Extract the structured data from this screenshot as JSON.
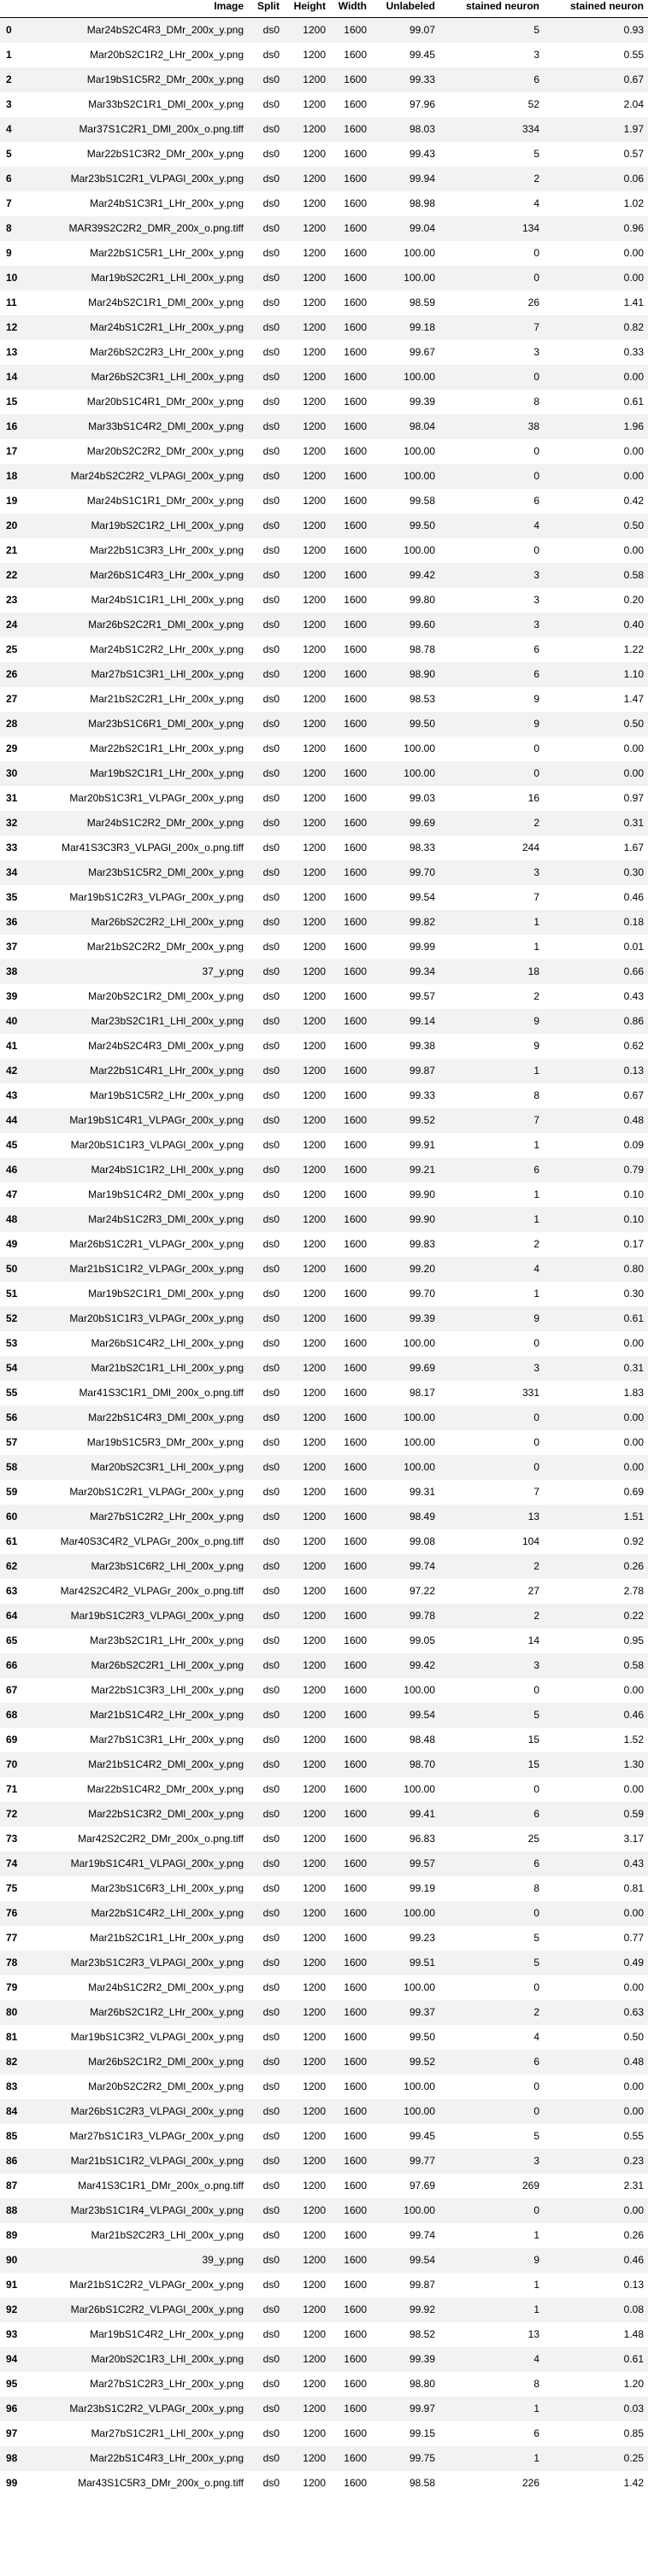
{
  "table": {
    "columns": [
      "",
      "Image",
      "Split",
      "Height",
      "Width",
      "Unlabeled",
      "stained neuron",
      "stained neuron"
    ],
    "rows": [
      [
        "0",
        "Mar24bS2C4R3_DMr_200x_y.png",
        "ds0",
        "1200",
        "1600",
        "99.07",
        "5",
        "0.93"
      ],
      [
        "1",
        "Mar20bS2C1R2_LHr_200x_y.png",
        "ds0",
        "1200",
        "1600",
        "99.45",
        "3",
        "0.55"
      ],
      [
        "2",
        "Mar19bS1C5R2_DMr_200x_y.png",
        "ds0",
        "1200",
        "1600",
        "99.33",
        "6",
        "0.67"
      ],
      [
        "3",
        "Mar33bS2C1R1_DMl_200x_y.png",
        "ds0",
        "1200",
        "1600",
        "97.96",
        "52",
        "2.04"
      ],
      [
        "4",
        "Mar37S1C2R1_DMl_200x_o.png.tiff",
        "ds0",
        "1200",
        "1600",
        "98.03",
        "334",
        "1.97"
      ],
      [
        "5",
        "Mar22bS1C3R2_DMr_200x_y.png",
        "ds0",
        "1200",
        "1600",
        "99.43",
        "5",
        "0.57"
      ],
      [
        "6",
        "Mar23bS1C2R1_VLPAGl_200x_y.png",
        "ds0",
        "1200",
        "1600",
        "99.94",
        "2",
        "0.06"
      ],
      [
        "7",
        "Mar24bS1C3R1_LHr_200x_y.png",
        "ds0",
        "1200",
        "1600",
        "98.98",
        "4",
        "1.02"
      ],
      [
        "8",
        "MAR39S2C2R2_DMR_200x_o.png.tiff",
        "ds0",
        "1200",
        "1600",
        "99.04",
        "134",
        "0.96"
      ],
      [
        "9",
        "Mar22bS1C5R1_LHr_200x_y.png",
        "ds0",
        "1200",
        "1600",
        "100.00",
        "0",
        "0.00"
      ],
      [
        "10",
        "Mar19bS2C2R1_LHl_200x_y.png",
        "ds0",
        "1200",
        "1600",
        "100.00",
        "0",
        "0.00"
      ],
      [
        "11",
        "Mar24bS2C1R1_DMl_200x_y.png",
        "ds0",
        "1200",
        "1600",
        "98.59",
        "26",
        "1.41"
      ],
      [
        "12",
        "Mar24bS1C2R1_LHr_200x_y.png",
        "ds0",
        "1200",
        "1600",
        "99.18",
        "7",
        "0.82"
      ],
      [
        "13",
        "Mar26bS2C2R3_LHr_200x_y.png",
        "ds0",
        "1200",
        "1600",
        "99.67",
        "3",
        "0.33"
      ],
      [
        "14",
        "Mar26bS2C3R1_LHl_200x_y.png",
        "ds0",
        "1200",
        "1600",
        "100.00",
        "0",
        "0.00"
      ],
      [
        "15",
        "Mar20bS1C4R1_DMr_200x_y.png",
        "ds0",
        "1200",
        "1600",
        "99.39",
        "8",
        "0.61"
      ],
      [
        "16",
        "Mar33bS1C4R2_DMl_200x_y.png",
        "ds0",
        "1200",
        "1600",
        "98.04",
        "38",
        "1.96"
      ],
      [
        "17",
        "Mar20bS2C2R2_DMr_200x_y.png",
        "ds0",
        "1200",
        "1600",
        "100.00",
        "0",
        "0.00"
      ],
      [
        "18",
        "Mar24bS2C2R2_VLPAGl_200x_y.png",
        "ds0",
        "1200",
        "1600",
        "100.00",
        "0",
        "0.00"
      ],
      [
        "19",
        "Mar24bS1C1R1_DMr_200x_y.png",
        "ds0",
        "1200",
        "1600",
        "99.58",
        "6",
        "0.42"
      ],
      [
        "20",
        "Mar19bS2C1R2_LHl_200x_y.png",
        "ds0",
        "1200",
        "1600",
        "99.50",
        "4",
        "0.50"
      ],
      [
        "21",
        "Mar22bS1C3R3_LHr_200x_y.png",
        "ds0",
        "1200",
        "1600",
        "100.00",
        "0",
        "0.00"
      ],
      [
        "22",
        "Mar26bS1C4R3_LHr_200x_y.png",
        "ds0",
        "1200",
        "1600",
        "99.42",
        "3",
        "0.58"
      ],
      [
        "23",
        "Mar24bS1C1R1_LHl_200x_y.png",
        "ds0",
        "1200",
        "1600",
        "99.80",
        "3",
        "0.20"
      ],
      [
        "24",
        "Mar26bS2C2R1_DMl_200x_y.png",
        "ds0",
        "1200",
        "1600",
        "99.60",
        "3",
        "0.40"
      ],
      [
        "25",
        "Mar24bS1C2R2_LHr_200x_y.png",
        "ds0",
        "1200",
        "1600",
        "98.78",
        "6",
        "1.22"
      ],
      [
        "26",
        "Mar27bS1C3R1_LHl_200x_y.png",
        "ds0",
        "1200",
        "1600",
        "98.90",
        "6",
        "1.10"
      ],
      [
        "27",
        "Mar21bS2C2R1_LHr_200x_y.png",
        "ds0",
        "1200",
        "1600",
        "98.53",
        "9",
        "1.47"
      ],
      [
        "28",
        "Mar23bS1C6R1_DMl_200x_y.png",
        "ds0",
        "1200",
        "1600",
        "99.50",
        "9",
        "0.50"
      ],
      [
        "29",
        "Mar22bS2C1R1_LHr_200x_y.png",
        "ds0",
        "1200",
        "1600",
        "100.00",
        "0",
        "0.00"
      ],
      [
        "30",
        "Mar19bS2C1R1_LHr_200x_y.png",
        "ds0",
        "1200",
        "1600",
        "100.00",
        "0",
        "0.00"
      ],
      [
        "31",
        "Mar20bS1C3R1_VLPAGr_200x_y.png",
        "ds0",
        "1200",
        "1600",
        "99.03",
        "16",
        "0.97"
      ],
      [
        "32",
        "Mar24bS1C2R2_DMr_200x_y.png",
        "ds0",
        "1200",
        "1600",
        "99.69",
        "2",
        "0.31"
      ],
      [
        "33",
        "Mar41S3C3R3_VLPAGl_200x_o.png.tiff",
        "ds0",
        "1200",
        "1600",
        "98.33",
        "244",
        "1.67"
      ],
      [
        "34",
        "Mar23bS1C5R2_DMl_200x_y.png",
        "ds0",
        "1200",
        "1600",
        "99.70",
        "3",
        "0.30"
      ],
      [
        "35",
        "Mar19bS1C2R3_VLPAGr_200x_y.png",
        "ds0",
        "1200",
        "1600",
        "99.54",
        "7",
        "0.46"
      ],
      [
        "36",
        "Mar26bS2C2R2_LHl_200x_y.png",
        "ds0",
        "1200",
        "1600",
        "99.82",
        "1",
        "0.18"
      ],
      [
        "37",
        "Mar21bS2C2R2_DMr_200x_y.png",
        "ds0",
        "1200",
        "1600",
        "99.99",
        "1",
        "0.01"
      ],
      [
        "38",
        "37_y.png",
        "ds0",
        "1200",
        "1600",
        "99.34",
        "18",
        "0.66"
      ],
      [
        "39",
        "Mar20bS2C1R2_DMl_200x_y.png",
        "ds0",
        "1200",
        "1600",
        "99.57",
        "2",
        "0.43"
      ],
      [
        "40",
        "Mar23bS2C1R1_LHl_200x_y.png",
        "ds0",
        "1200",
        "1600",
        "99.14",
        "9",
        "0.86"
      ],
      [
        "41",
        "Mar24bS2C4R3_DMl_200x_y.png",
        "ds0",
        "1200",
        "1600",
        "99.38",
        "9",
        "0.62"
      ],
      [
        "42",
        "Mar22bS1C4R1_LHr_200x_y.png",
        "ds0",
        "1200",
        "1600",
        "99.87",
        "1",
        "0.13"
      ],
      [
        "43",
        "Mar19bS1C5R2_LHr_200x_y.png",
        "ds0",
        "1200",
        "1600",
        "99.33",
        "8",
        "0.67"
      ],
      [
        "44",
        "Mar19bS1C4R1_VLPAGr_200x_y.png",
        "ds0",
        "1200",
        "1600",
        "99.52",
        "7",
        "0.48"
      ],
      [
        "45",
        "Mar20bS1C1R3_VLPAGl_200x_y.png",
        "ds0",
        "1200",
        "1600",
        "99.91",
        "1",
        "0.09"
      ],
      [
        "46",
        "Mar24bS1C1R2_LHl_200x_y.png",
        "ds0",
        "1200",
        "1600",
        "99.21",
        "6",
        "0.79"
      ],
      [
        "47",
        "Mar19bS1C4R2_DMl_200x_y.png",
        "ds0",
        "1200",
        "1600",
        "99.90",
        "1",
        "0.10"
      ],
      [
        "48",
        "Mar24bS1C2R3_DMl_200x_y.png",
        "ds0",
        "1200",
        "1600",
        "99.90",
        "1",
        "0.10"
      ],
      [
        "49",
        "Mar26bS1C2R1_VLPAGr_200x_y.png",
        "ds0",
        "1200",
        "1600",
        "99.83",
        "2",
        "0.17"
      ],
      [
        "50",
        "Mar21bS1C1R2_VLPAGr_200x_y.png",
        "ds0",
        "1200",
        "1600",
        "99.20",
        "4",
        "0.80"
      ],
      [
        "51",
        "Mar19bS2C1R1_DMl_200x_y.png",
        "ds0",
        "1200",
        "1600",
        "99.70",
        "1",
        "0.30"
      ],
      [
        "52",
        "Mar20bS1C1R3_VLPAGr_200x_y.png",
        "ds0",
        "1200",
        "1600",
        "99.39",
        "9",
        "0.61"
      ],
      [
        "53",
        "Mar26bS1C4R2_LHl_200x_y.png",
        "ds0",
        "1200",
        "1600",
        "100.00",
        "0",
        "0.00"
      ],
      [
        "54",
        "Mar21bS2C1R1_LHl_200x_y.png",
        "ds0",
        "1200",
        "1600",
        "99.69",
        "3",
        "0.31"
      ],
      [
        "55",
        "Mar41S3C1R1_DMl_200x_o.png.tiff",
        "ds0",
        "1200",
        "1600",
        "98.17",
        "331",
        "1.83"
      ],
      [
        "56",
        "Mar22bS1C4R3_DMl_200x_y.png",
        "ds0",
        "1200",
        "1600",
        "100.00",
        "0",
        "0.00"
      ],
      [
        "57",
        "Mar19bS1C5R3_DMr_200x_y.png",
        "ds0",
        "1200",
        "1600",
        "100.00",
        "0",
        "0.00"
      ],
      [
        "58",
        "Mar20bS2C3R1_LHl_200x_y.png",
        "ds0",
        "1200",
        "1600",
        "100.00",
        "0",
        "0.00"
      ],
      [
        "59",
        "Mar20bS1C2R1_VLPAGr_200x_y.png",
        "ds0",
        "1200",
        "1600",
        "99.31",
        "7",
        "0.69"
      ],
      [
        "60",
        "Mar27bS1C2R2_LHr_200x_y.png",
        "ds0",
        "1200",
        "1600",
        "98.49",
        "13",
        "1.51"
      ],
      [
        "61",
        "Mar40S3C4R2_VLPAGr_200x_o.png.tiff",
        "ds0",
        "1200",
        "1600",
        "99.08",
        "104",
        "0.92"
      ],
      [
        "62",
        "Mar23bS1C6R2_LHl_200x_y.png",
        "ds0",
        "1200",
        "1600",
        "99.74",
        "2",
        "0.26"
      ],
      [
        "63",
        "Mar42S2C4R2_VLPAGr_200x_o.png.tiff",
        "ds0",
        "1200",
        "1600",
        "97.22",
        "27",
        "2.78"
      ],
      [
        "64",
        "Mar19bS1C2R3_VLPAGl_200x_y.png",
        "ds0",
        "1200",
        "1600",
        "99.78",
        "2",
        "0.22"
      ],
      [
        "65",
        "Mar23bS2C1R1_LHr_200x_y.png",
        "ds0",
        "1200",
        "1600",
        "99.05",
        "14",
        "0.95"
      ],
      [
        "66",
        "Mar26bS2C2R1_LHl_200x_y.png",
        "ds0",
        "1200",
        "1600",
        "99.42",
        "3",
        "0.58"
      ],
      [
        "67",
        "Mar22bS1C3R3_LHl_200x_y.png",
        "ds0",
        "1200",
        "1600",
        "100.00",
        "0",
        "0.00"
      ],
      [
        "68",
        "Mar21bS1C4R2_LHr_200x_y.png",
        "ds0",
        "1200",
        "1600",
        "99.54",
        "5",
        "0.46"
      ],
      [
        "69",
        "Mar27bS1C3R1_LHr_200x_y.png",
        "ds0",
        "1200",
        "1600",
        "98.48",
        "15",
        "1.52"
      ],
      [
        "70",
        "Mar21bS1C4R2_DMl_200x_y.png",
        "ds0",
        "1200",
        "1600",
        "98.70",
        "15",
        "1.30"
      ],
      [
        "71",
        "Mar22bS1C4R2_DMr_200x_y.png",
        "ds0",
        "1200",
        "1600",
        "100.00",
        "0",
        "0.00"
      ],
      [
        "72",
        "Mar22bS1C3R2_DMl_200x_y.png",
        "ds0",
        "1200",
        "1600",
        "99.41",
        "6",
        "0.59"
      ],
      [
        "73",
        "Mar42S2C2R2_DMr_200x_o.png.tiff",
        "ds0",
        "1200",
        "1600",
        "96.83",
        "25",
        "3.17"
      ],
      [
        "74",
        "Mar19bS1C4R1_VLPAGl_200x_y.png",
        "ds0",
        "1200",
        "1600",
        "99.57",
        "6",
        "0.43"
      ],
      [
        "75",
        "Mar23bS1C6R3_LHl_200x_y.png",
        "ds0",
        "1200",
        "1600",
        "99.19",
        "8",
        "0.81"
      ],
      [
        "76",
        "Mar22bS1C4R2_LHl_200x_y.png",
        "ds0",
        "1200",
        "1600",
        "100.00",
        "0",
        "0.00"
      ],
      [
        "77",
        "Mar21bS2C1R1_LHr_200x_y.png",
        "ds0",
        "1200",
        "1600",
        "99.23",
        "5",
        "0.77"
      ],
      [
        "78",
        "Mar23bS1C2R3_VLPAGl_200x_y.png",
        "ds0",
        "1200",
        "1600",
        "99.51",
        "5",
        "0.49"
      ],
      [
        "79",
        "Mar24bS1C2R2_DMl_200x_y.png",
        "ds0",
        "1200",
        "1600",
        "100.00",
        "0",
        "0.00"
      ],
      [
        "80",
        "Mar26bS2C1R2_LHr_200x_y.png",
        "ds0",
        "1200",
        "1600",
        "99.37",
        "2",
        "0.63"
      ],
      [
        "81",
        "Mar19bS1C3R2_VLPAGl_200x_y.png",
        "ds0",
        "1200",
        "1600",
        "99.50",
        "4",
        "0.50"
      ],
      [
        "82",
        "Mar26bS2C1R2_DMl_200x_y.png",
        "ds0",
        "1200",
        "1600",
        "99.52",
        "6",
        "0.48"
      ],
      [
        "83",
        "Mar20bS2C2R2_DMl_200x_y.png",
        "ds0",
        "1200",
        "1600",
        "100.00",
        "0",
        "0.00"
      ],
      [
        "84",
        "Mar26bS1C2R3_VLPAGl_200x_y.png",
        "ds0",
        "1200",
        "1600",
        "100.00",
        "0",
        "0.00"
      ],
      [
        "85",
        "Mar27bS1C1R3_VLPAGr_200x_y.png",
        "ds0",
        "1200",
        "1600",
        "99.45",
        "5",
        "0.55"
      ],
      [
        "86",
        "Mar21bS1C1R2_VLPAGl_200x_y.png",
        "ds0",
        "1200",
        "1600",
        "99.77",
        "3",
        "0.23"
      ],
      [
        "87",
        "Mar41S3C1R1_DMr_200x_o.png.tiff",
        "ds0",
        "1200",
        "1600",
        "97.69",
        "269",
        "2.31"
      ],
      [
        "88",
        "Mar23bS1C1R4_VLPAGl_200x_y.png",
        "ds0",
        "1200",
        "1600",
        "100.00",
        "0",
        "0.00"
      ],
      [
        "89",
        "Mar21bS2C2R3_LHl_200x_y.png",
        "ds0",
        "1200",
        "1600",
        "99.74",
        "1",
        "0.26"
      ],
      [
        "90",
        "39_y.png",
        "ds0",
        "1200",
        "1600",
        "99.54",
        "9",
        "0.46"
      ],
      [
        "91",
        "Mar21bS1C2R2_VLPAGr_200x_y.png",
        "ds0",
        "1200",
        "1600",
        "99.87",
        "1",
        "0.13"
      ],
      [
        "92",
        "Mar26bS1C2R2_VLPAGl_200x_y.png",
        "ds0",
        "1200",
        "1600",
        "99.92",
        "1",
        "0.08"
      ],
      [
        "93",
        "Mar19bS1C4R2_LHr_200x_y.png",
        "ds0",
        "1200",
        "1600",
        "98.52",
        "13",
        "1.48"
      ],
      [
        "94",
        "Mar20bS2C1R3_LHl_200x_y.png",
        "ds0",
        "1200",
        "1600",
        "99.39",
        "4",
        "0.61"
      ],
      [
        "95",
        "Mar27bS1C2R3_LHr_200x_y.png",
        "ds0",
        "1200",
        "1600",
        "98.80",
        "8",
        "1.20"
      ],
      [
        "96",
        "Mar23bS1C2R2_VLPAGr_200x_y.png",
        "ds0",
        "1200",
        "1600",
        "99.97",
        "1",
        "0.03"
      ],
      [
        "97",
        "Mar27bS1C2R1_LHl_200x_y.png",
        "ds0",
        "1200",
        "1600",
        "99.15",
        "6",
        "0.85"
      ],
      [
        "98",
        "Mar22bS1C4R3_LHr_200x_y.png",
        "ds0",
        "1200",
        "1600",
        "99.75",
        "1",
        "0.25"
      ],
      [
        "99",
        "Mar43S1C5R3_DMr_200x_o.png.tiff",
        "ds0",
        "1200",
        "1600",
        "98.58",
        "226",
        "1.42"
      ]
    ]
  }
}
